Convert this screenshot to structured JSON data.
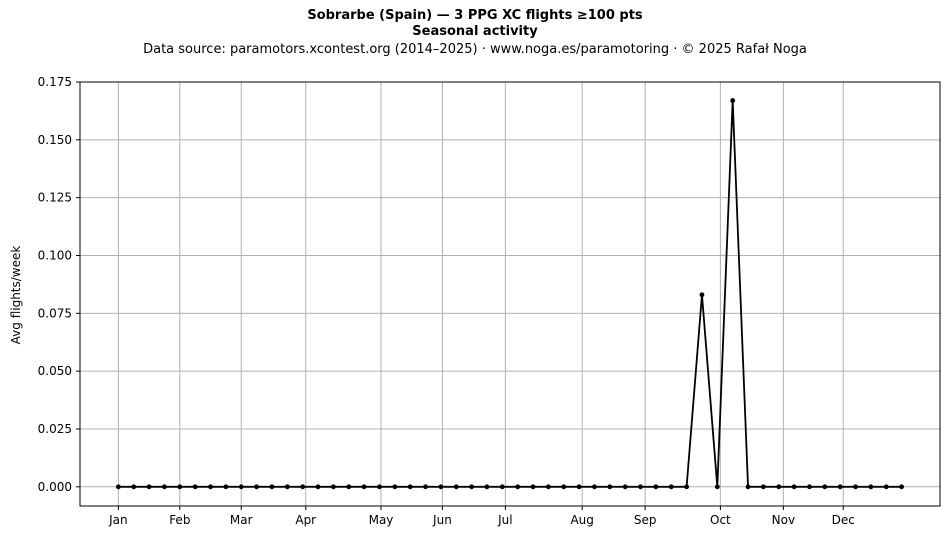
{
  "title_line1": "Sobrarbe (Spain)  —  3 PPG XC flights ≥100 pts",
  "title_line2": "Seasonal activity",
  "subtitle": "Data source: paramotors.xcontest.org (2014–2025)  ·  www.noga.es/paramotoring  ·  © 2025 Rafał Noga",
  "chart_data": {
    "type": "line",
    "title": "Sobrarbe (Spain)  —  3 PPG XC flights ≥100 pts",
    "subtitle": "Seasonal activity",
    "ylabel": "Avg flights/week",
    "xlabel": "",
    "x_unit": "week of year",
    "xlim": [
      -1.5,
      54.5
    ],
    "ylim": [
      -0.0083,
      0.175
    ],
    "x_ticks": [
      {
        "label": "Jan",
        "week": 1
      },
      {
        "label": "Feb",
        "week": 5
      },
      {
        "label": "Mar",
        "week": 9
      },
      {
        "label": "Apr",
        "week": 13.2
      },
      {
        "label": "May",
        "week": 18.1
      },
      {
        "label": "Jun",
        "week": 22.1
      },
      {
        "label": "Jul",
        "week": 26.2
      },
      {
        "label": "Aug",
        "week": 31.2
      },
      {
        "label": "Sep",
        "week": 35.3
      },
      {
        "label": "Oct",
        "week": 40.2
      },
      {
        "label": "Nov",
        "week": 44.3
      },
      {
        "label": "Dec",
        "week": 48.2
      }
    ],
    "y_ticks": [
      "0.000",
      "0.025",
      "0.050",
      "0.075",
      "0.100",
      "0.125",
      "0.150",
      "0.175"
    ],
    "y_tick_values": [
      0,
      0.025,
      0.05,
      0.075,
      0.1,
      0.125,
      0.15,
      0.175
    ],
    "grid": true,
    "series": [
      {
        "color": "#000000",
        "x": [
          1,
          2,
          3,
          4,
          5,
          6,
          7,
          8,
          9,
          10,
          11,
          12,
          13,
          14,
          15,
          16,
          17,
          18,
          19,
          20,
          21,
          22,
          23,
          24,
          25,
          26,
          27,
          28,
          29,
          30,
          31,
          32,
          33,
          34,
          35,
          36,
          37,
          38,
          39,
          40,
          41,
          42,
          43,
          44,
          45,
          46,
          47,
          48,
          49,
          50,
          51,
          52
        ],
        "values": [
          0,
          0,
          0,
          0,
          0,
          0,
          0,
          0,
          0,
          0,
          0,
          0,
          0,
          0,
          0,
          0,
          0,
          0,
          0,
          0,
          0,
          0,
          0,
          0,
          0,
          0,
          0,
          0,
          0,
          0,
          0,
          0,
          0,
          0,
          0,
          0,
          0,
          0,
          0.083,
          0,
          0.167,
          0,
          0,
          0,
          0,
          0,
          0,
          0,
          0,
          0,
          0,
          0
        ]
      }
    ]
  }
}
